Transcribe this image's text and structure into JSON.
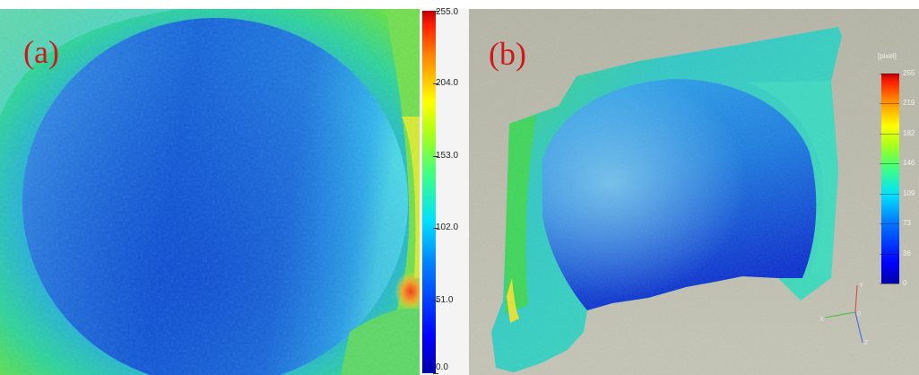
{
  "panel_a": {
    "label": "(a)"
  },
  "panel_b": {
    "label": "(b)"
  },
  "colorbar_a": {
    "ticks": [
      "255.0",
      "204.0",
      "153.0",
      "102.0",
      "51.0",
      "0.0"
    ],
    "values": [
      255,
      204,
      153,
      102,
      51,
      0
    ],
    "range": [
      0,
      255
    ]
  },
  "colorbar_b": {
    "unit": "[pixel]",
    "ticks": [
      "255",
      "219",
      "182",
      "146",
      "109",
      "73",
      "36",
      "0"
    ],
    "values": [
      255,
      219,
      182,
      146,
      109,
      73,
      36,
      0
    ],
    "range": [
      0,
      255
    ]
  },
  "axes_triad": {
    "y": "Y",
    "x": "X",
    "z": "Z",
    "origin": "0"
  },
  "colors": {
    "label_red": "#d01818",
    "colormap": "jet",
    "background_b": "#b9b9ab"
  }
}
